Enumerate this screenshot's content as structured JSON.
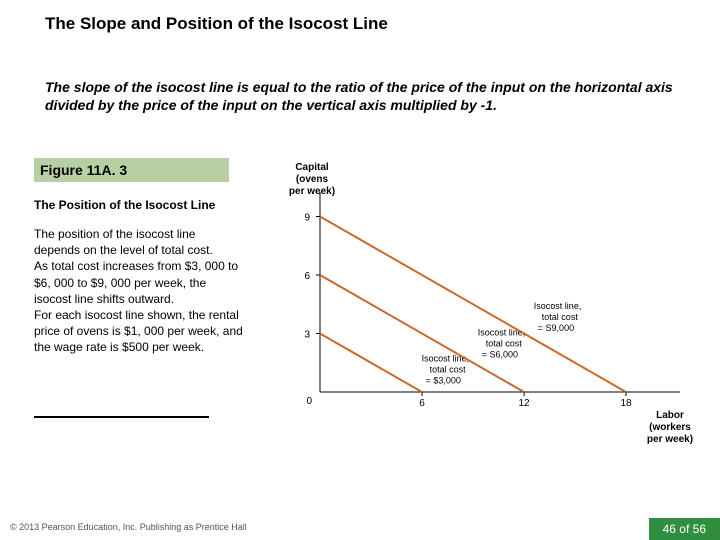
{
  "title": "The Slope and Position of the Isocost Line",
  "description": "The slope of the isocost line is equal to the ratio of the price of the input on the horizontal axis divided by the price of the input on the vertical axis multiplied by -1.",
  "figure_label": "Figure 11A. 3",
  "figure_title": "The Position of the Isocost Line",
  "body_text": "The position of the isocost line depends on the level of total cost.\nAs total cost increases from $3, 000 to $6, 000 to $9, 000 per week, the isocost line shifts outward.\nFor each isocost line shown, the rental price of ovens is $1, 000 per week, and the wage rate is $500 per week.",
  "footer_left": "© 2013 Pearson Education, Inc. Publishing as Prentice Hall",
  "footer_right": "46 of 56",
  "chart": {
    "type": "line",
    "y_axis_label_1": "Capital",
    "y_axis_label_2": "(ovens",
    "y_axis_label_3": "per week)",
    "x_axis_label_1": "Labor",
    "x_axis_label_2": "(workers",
    "x_axis_label_3": "per week)",
    "y_ticks": [
      3,
      6,
      9
    ],
    "x_ticks": [
      6,
      12,
      18
    ],
    "origin_label": "0",
    "y_max": 10,
    "x_max": 20,
    "line_color": "#c96a2a",
    "line_width": 2,
    "axis_color": "#000000",
    "tick_color": "#808080",
    "lines": [
      {
        "y_intercept": 3,
        "x_intercept": 6,
        "label1": "Isocost line,",
        "label2": "total cost",
        "label3": "= $3,000"
      },
      {
        "y_intercept": 6,
        "x_intercept": 12,
        "label1": "Isocost line,",
        "label2": "total cost",
        "label3": "= S6,000"
      },
      {
        "y_intercept": 9,
        "x_intercept": 18,
        "label1": "Isocost line,",
        "label2": "total cost",
        "label3": "= S9,000"
      }
    ]
  }
}
